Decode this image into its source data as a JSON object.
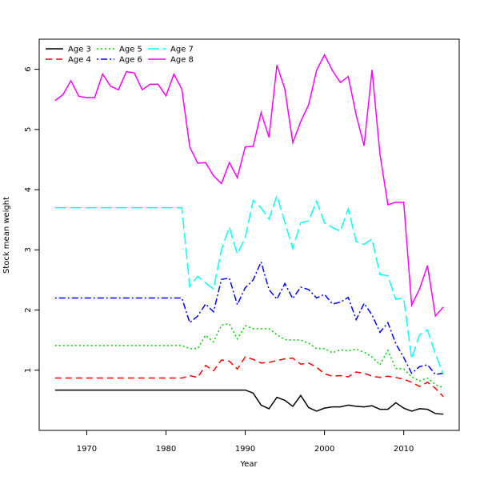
{
  "chart_data": {
    "type": "line",
    "title": "",
    "xlabel": "Year",
    "ylabel": "Stock mean weight",
    "xlim": [
      1964,
      2017
    ],
    "ylim": [
      0,
      6.5
    ],
    "x_ticks": [
      1970,
      1980,
      1990,
      2000,
      2010
    ],
    "y_ticks": [
      1,
      2,
      3,
      4,
      5,
      6
    ],
    "legend_position": "top-left",
    "grid": false,
    "x": [
      1966,
      1967,
      1968,
      1969,
      1970,
      1971,
      1972,
      1973,
      1974,
      1975,
      1976,
      1977,
      1978,
      1979,
      1980,
      1981,
      1982,
      1983,
      1984,
      1985,
      1986,
      1987,
      1988,
      1989,
      1990,
      1991,
      1992,
      1993,
      1994,
      1995,
      1996,
      1997,
      1998,
      1999,
      2000,
      2001,
      2002,
      2003,
      2004,
      2005,
      2006,
      2007,
      2008,
      2009,
      2010,
      2011,
      2012,
      2013,
      2014,
      2015
    ],
    "series": [
      {
        "name": "Age 3",
        "color": "#000000",
        "dash": "solid",
        "values": [
          0.67,
          0.67,
          0.67,
          0.67,
          0.67,
          0.67,
          0.67,
          0.67,
          0.67,
          0.67,
          0.67,
          0.67,
          0.67,
          0.67,
          0.67,
          0.67,
          0.67,
          0.67,
          0.67,
          0.67,
          0.67,
          0.67,
          0.67,
          0.67,
          0.67,
          0.62,
          0.42,
          0.36,
          0.55,
          0.5,
          0.4,
          0.58,
          0.38,
          0.32,
          0.37,
          0.39,
          0.39,
          0.42,
          0.4,
          0.39,
          0.41,
          0.35,
          0.35,
          0.46,
          0.37,
          0.32,
          0.36,
          0.35,
          0.28,
          0.27
        ]
      },
      {
        "name": "Age 4",
        "color": "#ff0000",
        "dash": "dashed",
        "values": [
          0.87,
          0.87,
          0.87,
          0.87,
          0.87,
          0.87,
          0.87,
          0.87,
          0.87,
          0.87,
          0.87,
          0.87,
          0.87,
          0.87,
          0.87,
          0.87,
          0.87,
          0.91,
          0.88,
          1.08,
          0.99,
          1.17,
          1.15,
          1.02,
          1.22,
          1.18,
          1.12,
          1.13,
          1.16,
          1.19,
          1.2,
          1.1,
          1.12,
          1.05,
          0.94,
          0.9,
          0.91,
          0.89,
          0.97,
          0.95,
          0.9,
          0.88,
          0.9,
          0.88,
          0.85,
          0.8,
          0.73,
          0.8,
          0.7,
          0.56
        ]
      },
      {
        "name": "Age 5",
        "color": "#00cd00",
        "dash": "dotted",
        "values": [
          1.41,
          1.41,
          1.41,
          1.41,
          1.41,
          1.41,
          1.41,
          1.41,
          1.41,
          1.41,
          1.41,
          1.41,
          1.41,
          1.41,
          1.41,
          1.41,
          1.41,
          1.36,
          1.36,
          1.58,
          1.47,
          1.75,
          1.77,
          1.52,
          1.74,
          1.69,
          1.69,
          1.69,
          1.59,
          1.51,
          1.5,
          1.5,
          1.45,
          1.36,
          1.36,
          1.29,
          1.34,
          1.32,
          1.35,
          1.3,
          1.22,
          1.09,
          1.33,
          1.03,
          1.02,
          0.89,
          0.82,
          0.87,
          0.76,
          0.71
        ]
      },
      {
        "name": "Age 6",
        "color": "#0000ff",
        "dash": "dotdash",
        "values": [
          2.2,
          2.2,
          2.2,
          2.2,
          2.2,
          2.2,
          2.2,
          2.2,
          2.2,
          2.2,
          2.2,
          2.2,
          2.2,
          2.2,
          2.2,
          2.2,
          2.2,
          1.79,
          1.9,
          2.1,
          1.97,
          2.51,
          2.53,
          2.09,
          2.37,
          2.5,
          2.8,
          2.34,
          2.18,
          2.44,
          2.19,
          2.38,
          2.34,
          2.2,
          2.26,
          2.1,
          2.13,
          2.21,
          1.84,
          2.11,
          1.92,
          1.63,
          1.79,
          1.44,
          1.21,
          0.95,
          1.06,
          1.09,
          0.93,
          0.95
        ]
      },
      {
        "name": "Age 7",
        "color": "#00ffff",
        "dash": "longdash",
        "values": [
          3.7,
          3.7,
          3.7,
          3.7,
          3.7,
          3.7,
          3.7,
          3.7,
          3.7,
          3.7,
          3.7,
          3.7,
          3.7,
          3.7,
          3.7,
          3.7,
          3.7,
          2.39,
          2.56,
          2.45,
          2.35,
          3.0,
          3.38,
          2.93,
          3.2,
          3.82,
          3.7,
          3.51,
          3.9,
          3.46,
          3.02,
          3.45,
          3.48,
          3.81,
          3.45,
          3.37,
          3.31,
          3.68,
          3.14,
          3.09,
          3.18,
          2.59,
          2.57,
          2.18,
          2.2,
          1.19,
          1.59,
          1.67,
          1.27,
          0.93
        ]
      },
      {
        "name": "Age 8",
        "color": "#ff00ff",
        "dash": "solid",
        "values": [
          5.48,
          5.58,
          5.81,
          5.55,
          5.53,
          5.53,
          5.92,
          5.72,
          5.66,
          5.96,
          5.94,
          5.66,
          5.75,
          5.75,
          5.56,
          5.92,
          5.67,
          4.71,
          4.44,
          4.45,
          4.23,
          4.1,
          4.45,
          4.2,
          4.71,
          4.72,
          5.28,
          4.87,
          6.07,
          5.67,
          4.78,
          5.13,
          5.41,
          5.98,
          6.24,
          5.98,
          5.78,
          5.88,
          5.24,
          4.73,
          5.99,
          4.59,
          3.75,
          3.79,
          3.79,
          2.08,
          2.35,
          2.74,
          1.9,
          2.05
        ]
      }
    ]
  }
}
